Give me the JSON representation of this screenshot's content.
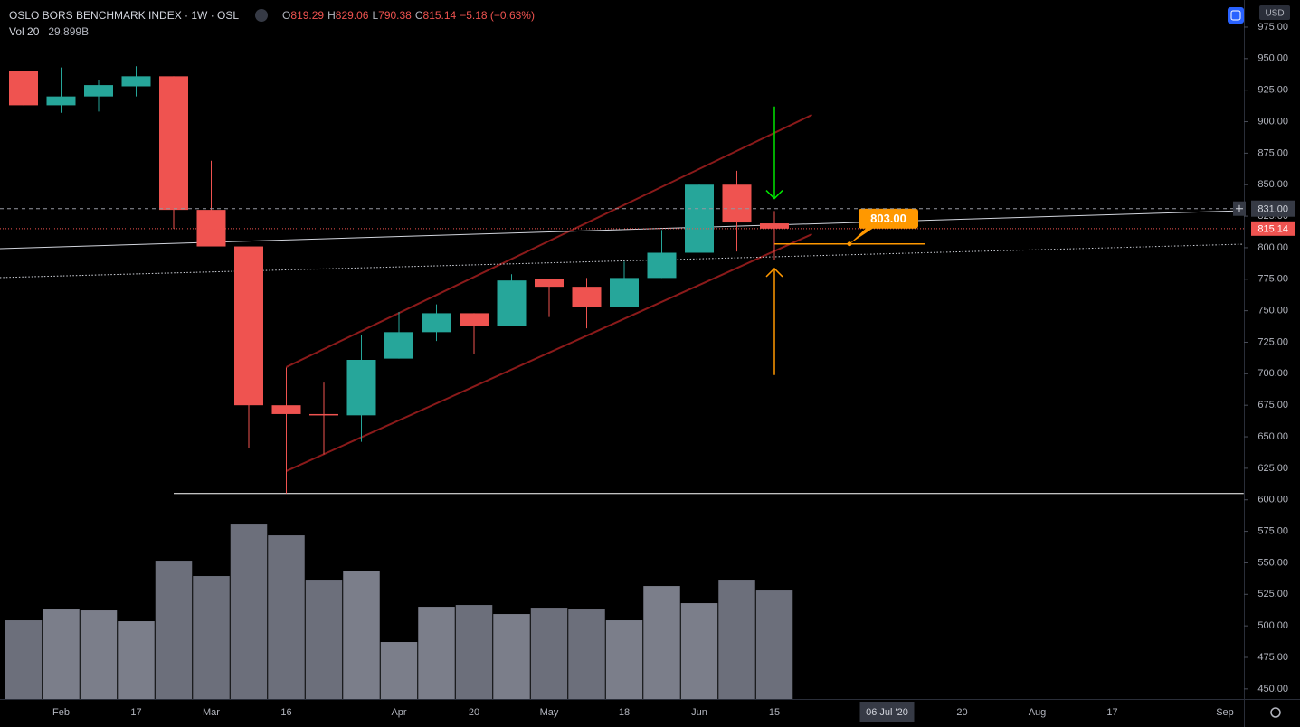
{
  "chart_data": {
    "type": "candlestick",
    "title": "OSLO BORS BENCHMARK INDEX · 1W · OSL",
    "ohlc_keys": [
      "O",
      "H",
      "L",
      "C"
    ],
    "change": "−5.18 (−0.63%)",
    "currency": "USD",
    "up_color": "#26a69a",
    "down_color": "#ef5350",
    "categories": [
      null,
      "Feb",
      null,
      "17",
      null,
      "Mar",
      null,
      "16",
      null,
      null,
      "Apr",
      null,
      "20",
      null,
      "May",
      null,
      "18",
      null,
      "Jun",
      null,
      "15",
      null,
      null,
      null,
      null,
      "20",
      null,
      "Aug",
      null,
      "17",
      null,
      null,
      "Sep"
    ],
    "open": [
      940,
      913,
      920,
      928,
      936,
      830,
      801,
      675,
      668,
      667,
      712,
      733,
      748,
      738,
      775,
      769,
      753,
      776,
      796,
      850,
      819.29,
      null,
      null,
      null,
      null,
      null,
      null,
      null,
      null,
      null,
      null,
      null,
      null
    ],
    "high": [
      940,
      943,
      933,
      944,
      936,
      869,
      801,
      705,
      693,
      731,
      749,
      755,
      748,
      779,
      775,
      776,
      789,
      814,
      850,
      861,
      829.06,
      null,
      null,
      null,
      null,
      null,
      null,
      null,
      null,
      null,
      null,
      null,
      null
    ],
    "low": [
      913,
      907,
      908,
      920,
      815,
      801,
      641,
      605,
      636,
      646,
      712,
      726,
      716,
      738,
      745,
      736,
      753,
      776,
      796,
      797,
      790.38,
      null,
      null,
      null,
      null,
      null,
      null,
      null,
      null,
      null,
      null,
      null,
      null
    ],
    "close": [
      913,
      920,
      929,
      936,
      830,
      801,
      675,
      668,
      667,
      711,
      733,
      748,
      738,
      774,
      769,
      753,
      776,
      796,
      850,
      820,
      815.14,
      null,
      null,
      null,
      null,
      null,
      null,
      null,
      null,
      null,
      null,
      null,
      null
    ],
    "volume": {
      "name": "Vol 20",
      "up_color": "#7b7e8a",
      "down_color": "#6c6f7b",
      "ylim": [
        0,
        50
      ],
      "values": [
        21.68,
        24.67,
        24.42,
        21.43,
        38.12,
        33.89,
        48.09,
        45.1,
        32.89,
        35.38,
        15.7,
        25.41,
        25.91,
        23.42,
        25.16,
        24.67,
        21.68,
        31.14,
        26.41,
        32.89,
        29.899,
        null,
        null,
        null,
        null,
        null,
        null,
        null,
        null,
        null,
        null,
        null,
        null
      ],
      "value_labels": [
        null,
        null,
        null,
        null,
        null,
        null,
        null,
        null,
        null,
        null,
        null,
        null,
        null,
        null,
        null,
        null,
        null,
        null,
        null,
        null,
        "29.899B",
        null,
        null,
        null,
        null,
        null,
        null,
        null,
        null,
        null,
        null,
        null,
        null
      ]
    },
    "ylim": [
      442,
      996.5
    ],
    "yticks": [
      {
        "value": 975,
        "label": "975.00"
      },
      {
        "value": 950,
        "label": "950.00"
      },
      {
        "value": 925,
        "label": "925.00"
      },
      {
        "value": 900,
        "label": "900.00"
      },
      {
        "value": 875,
        "label": "875.00"
      },
      {
        "value": 850,
        "label": "850.00"
      },
      {
        "value": 825,
        "label": "825.00"
      },
      {
        "value": 800,
        "label": "800.00"
      },
      {
        "value": 775,
        "label": "775.00"
      },
      {
        "value": 750,
        "label": "750.00"
      },
      {
        "value": 725,
        "label": "725.00"
      },
      {
        "value": 700,
        "label": "700.00"
      },
      {
        "value": 675,
        "label": "675.00"
      },
      {
        "value": 650,
        "label": "650.00"
      },
      {
        "value": 625,
        "label": "625.00"
      },
      {
        "value": 600,
        "label": "600.00"
      },
      {
        "value": 575,
        "label": "575.00"
      },
      {
        "value": 550,
        "label": "550.00"
      },
      {
        "value": 525,
        "label": "525.00"
      },
      {
        "value": 500,
        "label": "500.00"
      },
      {
        "value": 475,
        "label": "475.00"
      },
      {
        "value": 450,
        "label": "450.00"
      }
    ],
    "grid": false,
    "last_price": {
      "value": 815.14,
      "color": "#ef5350"
    },
    "crosshair": {
      "index": 23,
      "x_label": "06 Jul '20",
      "y": {
        "value": 831,
        "label": "831.00"
      }
    },
    "drawings": {
      "channel_upper": {
        "x": [
          7,
          21
        ],
        "y": [
          705.3,
          905.4
        ],
        "color": "#8b1a1a",
        "style": "solid"
      },
      "channel_lower": {
        "x": [
          7,
          21
        ],
        "y": [
          622.8,
          810.7
        ],
        "color": "#8b1a1a",
        "style": "solid"
      },
      "trend": {
        "x": [
          -0.63,
          32.5
        ],
        "y": [
          799.2,
          829.4
        ],
        "color": "#d1d4dc",
        "style": "solid"
      },
      "trend_dotted": {
        "x": [
          -0.63,
          32.5
        ],
        "y": [
          776.3,
          802.8
        ],
        "color": "#d1d4dc",
        "style": "dotted"
      },
      "support": {
        "x": [
          4,
          32.5
        ],
        "y": [
          605,
          605
        ],
        "color": "#ffffff",
        "style": "solid"
      }
    },
    "level": {
      "x": [
        20,
        24
      ],
      "value": 803,
      "label": "803.00",
      "color": "#ff9800"
    },
    "arrows": {
      "down": {
        "x": 20,
        "y": [
          912,
          839
        ],
        "color": "#00e600"
      },
      "up": {
        "x": 20,
        "y": [
          699,
          783.5
        ],
        "color": "#ff9800"
      }
    }
  }
}
